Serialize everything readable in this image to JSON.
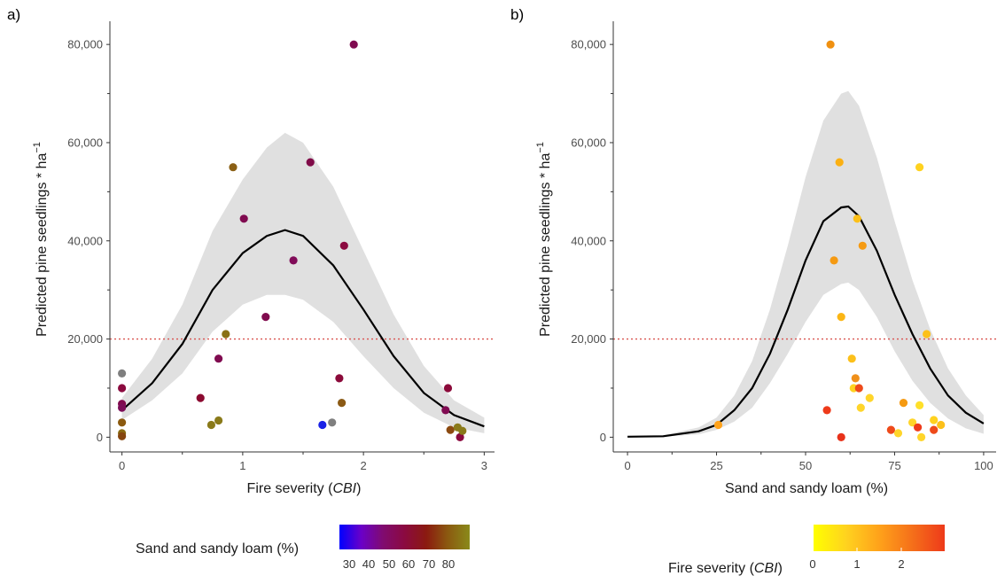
{
  "chart_data": [
    {
      "panel_label": "a)",
      "type": "scatter",
      "xlabel_prefix": "Fire severity (",
      "xlabel_italic": "CBI",
      "xlabel_suffix": ")",
      "ylabel": "Predicted pine seedlings * ha",
      "ylabel_sup": "−1",
      "xlim": [
        -0.1,
        3.1
      ],
      "ylim": [
        -3000,
        84000
      ],
      "x_ticks": [
        0,
        1,
        2,
        3
      ],
      "x_tick_labels": [
        "0",
        "1",
        "2",
        "3"
      ],
      "y_ticks": [
        0,
        20000,
        40000,
        60000,
        80000
      ],
      "y_tick_labels": [
        "0",
        "20,000",
        "40,000",
        "60,000",
        "80,000"
      ],
      "threshold": 20000,
      "threshold_color": "#d9534f",
      "fit": {
        "x": [
          0,
          0.25,
          0.5,
          0.75,
          1.0,
          1.2,
          1.35,
          1.5,
          1.75,
          2.0,
          2.25,
          2.5,
          2.75,
          3.0
        ],
        "y": [
          5500,
          11000,
          19000,
          30000,
          37500,
          41000,
          42200,
          41000,
          35000,
          26000,
          16500,
          9000,
          4500,
          2200
        ],
        "lower": [
          3500,
          7500,
          13000,
          21500,
          27000,
          29000,
          29000,
          28000,
          23500,
          16500,
          10000,
          5000,
          2000,
          800
        ],
        "upper": [
          8000,
          16000,
          27000,
          42000,
          52500,
          59000,
          62000,
          60000,
          51000,
          38000,
          25000,
          14500,
          7500,
          4000
        ]
      },
      "points": [
        {
          "x": 0.0,
          "y": 13000,
          "color": "#7f7f7f"
        },
        {
          "x": 0.0,
          "y": 10000,
          "color": "#8b0a3f"
        },
        {
          "x": 0.0,
          "y": 6800,
          "color": "#800b4e"
        },
        {
          "x": 0.0,
          "y": 6000,
          "color": "#7c0e58"
        },
        {
          "x": 0.0,
          "y": 3000,
          "color": "#8b5a0f"
        },
        {
          "x": 0.0,
          "y": 800,
          "color": "#8a6a12"
        },
        {
          "x": 0.0,
          "y": 200,
          "color": "#86450f"
        },
        {
          "x": 0.65,
          "y": 8000,
          "color": "#8b0a30"
        },
        {
          "x": 0.74,
          "y": 2500,
          "color": "#8a7a1a"
        },
        {
          "x": 0.8,
          "y": 3400,
          "color": "#8a7a1a"
        },
        {
          "x": 0.8,
          "y": 16000,
          "color": "#800b50"
        },
        {
          "x": 0.86,
          "y": 21000,
          "color": "#8a7016"
        },
        {
          "x": 0.92,
          "y": 55000,
          "color": "#8b6015"
        },
        {
          "x": 1.01,
          "y": 44500,
          "color": "#800b50"
        },
        {
          "x": 1.19,
          "y": 24500,
          "color": "#800b4e"
        },
        {
          "x": 1.42,
          "y": 36000,
          "color": "#800b58"
        },
        {
          "x": 1.56,
          "y": 56000,
          "color": "#800b48"
        },
        {
          "x": 1.66,
          "y": 2500,
          "color": "#1a22e6"
        },
        {
          "x": 1.74,
          "y": 3000,
          "color": "#7f7f7f"
        },
        {
          "x": 1.8,
          "y": 12000,
          "color": "#8b0a3a"
        },
        {
          "x": 1.82,
          "y": 7000,
          "color": "#8b5a15"
        },
        {
          "x": 1.84,
          "y": 39000,
          "color": "#8b0a40"
        },
        {
          "x": 1.92,
          "y": 80000,
          "color": "#800b50"
        },
        {
          "x": 2.68,
          "y": 5500,
          "color": "#800b52"
        },
        {
          "x": 2.7,
          "y": 10000,
          "color": "#8b0a3a"
        },
        {
          "x": 2.72,
          "y": 1500,
          "color": "#8b4a10"
        },
        {
          "x": 2.78,
          "y": 2000,
          "color": "#8a7a1a"
        },
        {
          "x": 2.8,
          "y": 0,
          "color": "#8b0a40"
        },
        {
          "x": 2.82,
          "y": 1300,
          "color": "#8a7a1a"
        }
      ],
      "legend": {
        "title": "Sand and sandy loam (%)",
        "type": "gradient",
        "colors": [
          "#0000ff",
          "#6a00c8",
          "#800b70",
          "#8b0a40",
          "#8b1a10",
          "#8b5a10",
          "#8a8a1a"
        ],
        "tick_labels": [
          "30",
          "40",
          "50",
          "60",
          "70",
          "80"
        ]
      }
    },
    {
      "panel_label": "b)",
      "type": "scatter",
      "xlabel": "Sand and sandy loam (%)",
      "ylabel": "Predicted pine seedlings * ha",
      "ylabel_sup": "−1",
      "xlim": [
        -4,
        104
      ],
      "ylim": [
        -3000,
        84000
      ],
      "x_ticks": [
        0,
        25,
        50,
        75,
        100
      ],
      "x_tick_labels": [
        "0",
        "25",
        "50",
        "75",
        "100"
      ],
      "y_ticks": [
        0,
        20000,
        40000,
        60000,
        80000
      ],
      "y_tick_labels": [
        "0",
        "20,000",
        "40,000",
        "60,000",
        "80,000"
      ],
      "threshold": 20000,
      "threshold_color": "#d9534f",
      "fit": {
        "x": [
          0,
          10,
          20,
          25,
          30,
          35,
          40,
          45,
          50,
          55,
          60,
          62,
          65,
          70,
          75,
          80,
          85,
          90,
          95,
          100
        ],
        "y": [
          100,
          200,
          1200,
          2500,
          5500,
          10000,
          17000,
          26000,
          36000,
          44000,
          46800,
          47000,
          45000,
          38000,
          29000,
          21000,
          14000,
          8500,
          5000,
          2800
        ],
        "lower": [
          0,
          100,
          600,
          1500,
          3200,
          6000,
          11000,
          17000,
          23500,
          29000,
          31200,
          31500,
          30000,
          24500,
          17500,
          11500,
          7000,
          3800,
          1800,
          700
        ],
        "upper": [
          200,
          400,
          2000,
          4000,
          8500,
          15500,
          26000,
          39000,
          53000,
          64500,
          70000,
          70500,
          67500,
          57000,
          44000,
          32000,
          22000,
          14000,
          8500,
          4500
        ]
      },
      "points": [
        {
          "x": 25.5,
          "y": 2500,
          "color": "#ffa21a"
        },
        {
          "x": 56,
          "y": 5500,
          "color": "#ee3a1a"
        },
        {
          "x": 57,
          "y": 80000,
          "color": "#f09010"
        },
        {
          "x": 58,
          "y": 36000,
          "color": "#f59a12"
        },
        {
          "x": 59.5,
          "y": 56000,
          "color": "#fbb012"
        },
        {
          "x": 60,
          "y": 24500,
          "color": "#fbb615"
        },
        {
          "x": 60,
          "y": 0,
          "color": "#e8321a"
        },
        {
          "x": 63,
          "y": 16000,
          "color": "#fcc01a"
        },
        {
          "x": 63.5,
          "y": 10000,
          "color": "#ffd21f"
        },
        {
          "x": 64,
          "y": 12000,
          "color": "#f0901a"
        },
        {
          "x": 64.5,
          "y": 44500,
          "color": "#fcc01a"
        },
        {
          "x": 65,
          "y": 10000,
          "color": "#ee4a1a"
        },
        {
          "x": 65.5,
          "y": 6000,
          "color": "#ffd52a"
        },
        {
          "x": 66,
          "y": 39000,
          "color": "#f59a12"
        },
        {
          "x": 68,
          "y": 8000,
          "color": "#ffd52a"
        },
        {
          "x": 74,
          "y": 1500,
          "color": "#ee4a1a"
        },
        {
          "x": 76,
          "y": 800,
          "color": "#ffd52a"
        },
        {
          "x": 77.5,
          "y": 7000,
          "color": "#f59a12"
        },
        {
          "x": 80,
          "y": 3000,
          "color": "#ffd52a"
        },
        {
          "x": 81.5,
          "y": 2000,
          "color": "#ee3a1a"
        },
        {
          "x": 82,
          "y": 55000,
          "color": "#ffd21f"
        },
        {
          "x": 82,
          "y": 6500,
          "color": "#ffe02a"
        },
        {
          "x": 82.5,
          "y": 0,
          "color": "#ffd52a"
        },
        {
          "x": 84,
          "y": 21000,
          "color": "#fcc01a"
        },
        {
          "x": 86,
          "y": 3500,
          "color": "#ffd21f"
        },
        {
          "x": 86,
          "y": 1500,
          "color": "#ee4a1a"
        },
        {
          "x": 88,
          "y": 2500,
          "color": "#fcc01a"
        }
      ],
      "legend": {
        "title_prefix": "Fire severity (",
        "title_italic": "CBI",
        "title_suffix": ")",
        "type": "gradient",
        "colors": [
          "#ffff00",
          "#ffd21f",
          "#ffa21a",
          "#f5701a",
          "#ee3a1a"
        ],
        "tick_labels": [
          "0",
          "1",
          "2"
        ]
      }
    }
  ]
}
